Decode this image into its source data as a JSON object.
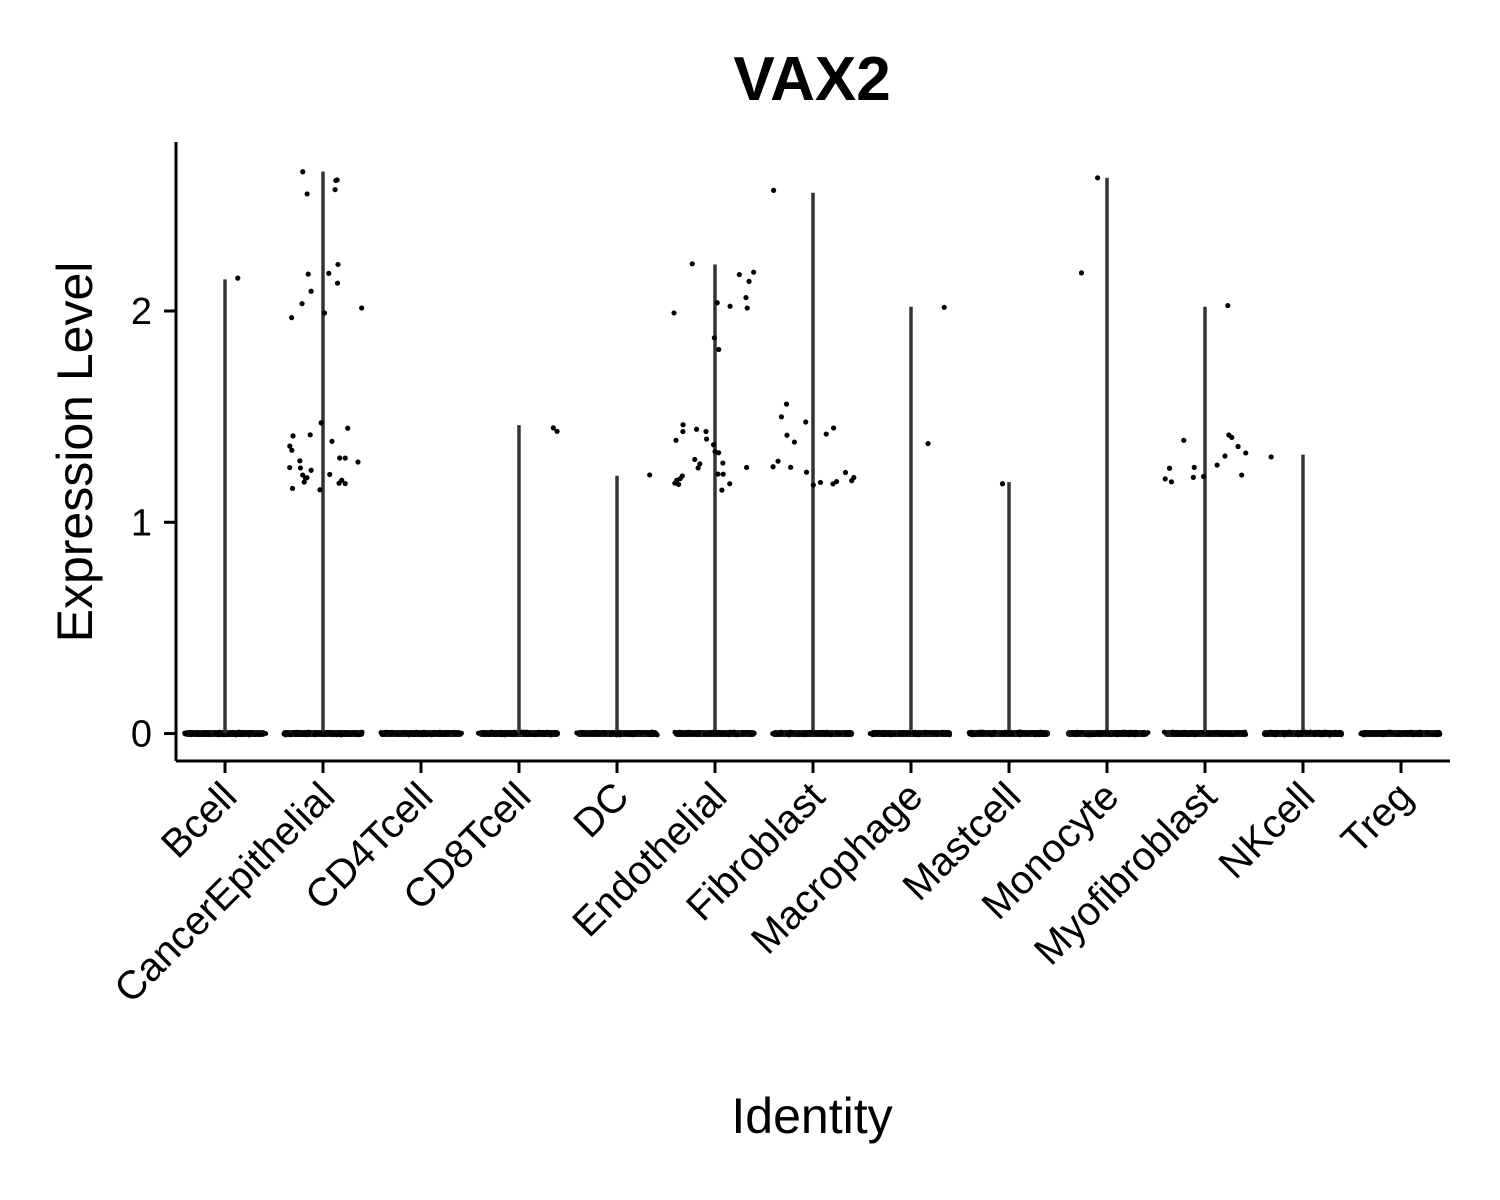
{
  "chart_data": {
    "type": "violin",
    "title": "VAX2",
    "xlabel": "Identity",
    "ylabel": "Expression Level",
    "ylim": [
      -0.13,
      2.8
    ],
    "yticks": [
      0,
      1,
      2
    ],
    "grid": false,
    "legend": "none",
    "categories": [
      "Bcell",
      "CancerEpithelial",
      "CD4Tcell",
      "CD8Tcell",
      "DC",
      "Endothelial",
      "Fibroblast",
      "Macrophage",
      "Mastcell",
      "Monocyte",
      "Myofibroblast",
      "NKcell",
      "Treg"
    ],
    "series": [
      {
        "values": [
          {
            "category": "Bcell",
            "max": 2.15,
            "points": [
              2.15
            ]
          },
          {
            "category": "CancerEpithelial",
            "max": 2.66,
            "points": [
              2.54,
              2.66,
              2.58,
              2.62,
              2.63,
              2.21,
              2.17,
              2.13,
              2.18,
              2.09,
              2.03,
              1.97,
              2.02,
              2.0,
              1.44,
              1.47,
              1.42,
              1.4,
              1.38,
              1.35,
              1.33,
              1.31,
              1.3,
              1.29,
              1.28,
              1.27,
              1.26,
              1.25,
              1.24,
              1.23,
              1.22,
              1.21,
              1.2,
              1.19,
              1.18,
              1.17,
              1.16,
              1.15
            ]
          },
          {
            "category": "CD4Tcell",
            "max": 0,
            "points": []
          },
          {
            "category": "CD8Tcell",
            "max": 1.46,
            "points": [
              1.46,
              1.42
            ]
          },
          {
            "category": "DC",
            "max": 1.22,
            "points": [
              1.22
            ]
          },
          {
            "category": "Endothelial",
            "max": 2.22,
            "points": [
              2.21,
              2.19,
              2.17,
              2.15,
              2.07,
              2.05,
              2.03,
              2.0,
              1.99,
              1.86,
              1.81,
              1.47,
              1.45,
              1.43,
              1.42,
              1.4,
              1.38,
              1.36,
              1.34,
              1.32,
              1.3,
              1.28,
              1.27,
              1.26,
              1.25,
              1.24,
              1.23,
              1.22,
              1.21,
              1.2,
              1.19,
              1.18,
              1.17,
              1.16
            ]
          },
          {
            "category": "Fibroblast",
            "max": 2.56,
            "points": [
              2.56,
              1.55,
              1.5,
              1.47,
              1.44,
              1.42,
              1.4,
              1.38,
              1.3,
              1.27,
              1.25,
              1.24,
              1.23,
              1.22,
              1.21,
              1.2,
              1.19,
              1.18,
              1.17
            ]
          },
          {
            "category": "Macrophage",
            "max": 2.02,
            "points": [
              2.02,
              1.37
            ]
          },
          {
            "category": "Mastcell",
            "max": 1.19,
            "points": [
              1.19
            ]
          },
          {
            "category": "Monocyte",
            "max": 2.63,
            "points": [
              2.63,
              2.18
            ]
          },
          {
            "category": "Myofibroblast",
            "max": 2.02,
            "points": [
              2.02,
              1.42,
              1.4,
              1.38,
              1.35,
              1.33,
              1.3,
              1.28,
              1.27,
              1.25,
              1.23,
              1.22,
              1.21,
              1.2,
              1.19
            ]
          },
          {
            "category": "NKcell",
            "max": 1.32,
            "points": [
              1.32
            ]
          },
          {
            "category": "Treg",
            "max": 0,
            "points": []
          }
        ]
      }
    ]
  }
}
